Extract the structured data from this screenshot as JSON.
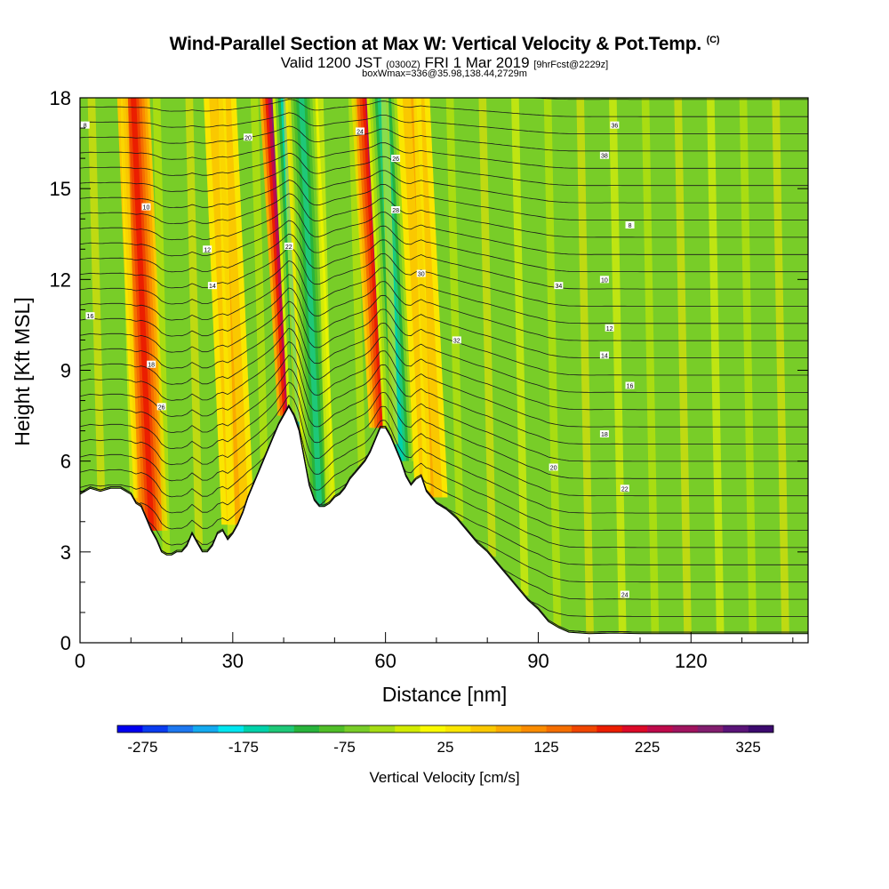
{
  "header": {
    "title": "Wind-Parallel Section at Max W: Vertical Velocity & Pot.Temp.",
    "copyright": "(C)",
    "valid_prefix": "Valid 1200 JST",
    "valid_utc": "(0300Z)",
    "valid_date": "FRI 1 Mar 2019",
    "forecast": "[9hrFcst@2229z]",
    "box_info": "boxWmax=336@35.98,138.44,2729m"
  },
  "chart_data": {
    "type": "heatmap",
    "xlabel": "Distance [nm]",
    "ylabel": "Height [Kft MSL]",
    "xlim": [
      0,
      143
    ],
    "ylim": [
      0,
      18
    ],
    "x_ticks": [
      "0",
      "30",
      "60",
      "90",
      "120"
    ],
    "x_tick_values": [
      0,
      30,
      60,
      90,
      120
    ],
    "y_ticks": [
      "0",
      "3",
      "6",
      "9",
      "12",
      "15",
      "18"
    ],
    "y_tick_values": [
      0,
      3,
      6,
      9,
      12,
      15,
      18
    ],
    "colorbar": {
      "label": "Vertical Velocity [cm/s]",
      "min": -300,
      "max": 350,
      "step": 25,
      "tick_labels": [
        "-275",
        "-175",
        "-75",
        "25",
        "125",
        "225",
        "325"
      ],
      "tick_values": [
        -275,
        -175,
        -75,
        25,
        125,
        225,
        325
      ],
      "colors": [
        "#0000f0",
        "#0a3cf0",
        "#1e78f0",
        "#14aaf0",
        "#00e6f0",
        "#00d2aa",
        "#1ec878",
        "#28b43c",
        "#50be28",
        "#78cd28",
        "#a5dc14",
        "#d2eb00",
        "#fafa00",
        "#fae600",
        "#fac800",
        "#faaa00",
        "#fa8c00",
        "#f56e00",
        "#f04600",
        "#eb1e00",
        "#dc0a28",
        "#be0a4b",
        "#a0145f",
        "#821e6e",
        "#5a1478",
        "#3c0a6e"
      ]
    },
    "terrain_height_kft": [
      [
        0,
        4.9
      ],
      [
        1,
        5.0
      ],
      [
        2,
        5.1
      ],
      [
        4,
        5.0
      ],
      [
        6,
        5.1
      ],
      [
        8,
        5.1
      ],
      [
        10,
        4.9
      ],
      [
        11,
        4.6
      ],
      [
        12,
        4.5
      ],
      [
        13,
        4.1
      ],
      [
        14,
        3.7
      ],
      [
        15,
        3.4
      ],
      [
        16,
        3.0
      ],
      [
        17,
        2.9
      ],
      [
        18,
        2.9
      ],
      [
        19,
        3.0
      ],
      [
        20,
        3.0
      ],
      [
        21,
        3.2
      ],
      [
        22,
        3.6
      ],
      [
        23,
        3.3
      ],
      [
        24,
        3.0
      ],
      [
        25,
        3.0
      ],
      [
        26,
        3.2
      ],
      [
        27,
        3.6
      ],
      [
        28,
        3.7
      ],
      [
        29,
        3.4
      ],
      [
        30,
        3.6
      ],
      [
        31,
        3.9
      ],
      [
        32,
        4.3
      ],
      [
        33,
        4.8
      ],
      [
        34,
        5.2
      ],
      [
        35,
        5.6
      ],
      [
        36,
        6.0
      ],
      [
        37,
        6.4
      ],
      [
        38,
        6.8
      ],
      [
        39,
        7.2
      ],
      [
        40,
        7.5
      ],
      [
        41,
        7.8
      ],
      [
        42,
        7.5
      ],
      [
        43,
        7.0
      ],
      [
        44,
        6.1
      ],
      [
        45,
        5.2
      ],
      [
        46,
        4.7
      ],
      [
        47,
        4.5
      ],
      [
        48,
        4.5
      ],
      [
        49,
        4.6
      ],
      [
        50,
        4.8
      ],
      [
        51,
        4.9
      ],
      [
        52,
        5.1
      ],
      [
        53,
        5.4
      ],
      [
        54,
        5.6
      ],
      [
        55,
        5.8
      ],
      [
        56,
        6.0
      ],
      [
        57,
        6.3
      ],
      [
        58,
        6.7
      ],
      [
        59,
        7.1
      ],
      [
        60,
        7.1
      ],
      [
        61,
        6.8
      ],
      [
        62,
        6.4
      ],
      [
        63,
        6.0
      ],
      [
        64,
        5.5
      ],
      [
        65,
        5.2
      ],
      [
        66,
        5.4
      ],
      [
        67,
        5.5
      ],
      [
        68,
        5.0
      ],
      [
        69,
        4.8
      ],
      [
        70,
        4.6
      ],
      [
        72,
        4.4
      ],
      [
        74,
        4.1
      ],
      [
        76,
        3.7
      ],
      [
        78,
        3.3
      ],
      [
        80,
        3.0
      ],
      [
        82,
        2.6
      ],
      [
        84,
        2.2
      ],
      [
        86,
        1.8
      ],
      [
        88,
        1.4
      ],
      [
        90,
        1.1
      ],
      [
        92,
        0.7
      ],
      [
        94,
        0.5
      ],
      [
        96,
        0.35
      ],
      [
        100,
        0.3
      ],
      [
        105,
        0.32
      ],
      [
        110,
        0.3
      ],
      [
        120,
        0.3
      ],
      [
        135,
        0.3
      ],
      [
        143,
        0.3
      ]
    ],
    "w_maxima": [
      {
        "x": 14,
        "z_top": 18,
        "w": 175
      },
      {
        "x": 31,
        "z_top": 18,
        "w": 75
      },
      {
        "x": 42,
        "z_top": 18,
        "w": 325
      },
      {
        "x": 44.5,
        "z_top": 18,
        "w": -250
      },
      {
        "x": 47,
        "z_top": 18,
        "w": -150
      },
      {
        "x": 60,
        "z_top": 18,
        "w": 225
      },
      {
        "x": 63,
        "z_top": 18,
        "w": -175
      },
      {
        "x": 69,
        "z_top": 18,
        "w": 75
      }
    ],
    "theta_contour_labels": [
      "8",
      "10",
      "12",
      "14",
      "16",
      "18",
      "20",
      "22",
      "24",
      "26",
      "28",
      "30",
      "32",
      "34",
      "36",
      "38"
    ]
  }
}
